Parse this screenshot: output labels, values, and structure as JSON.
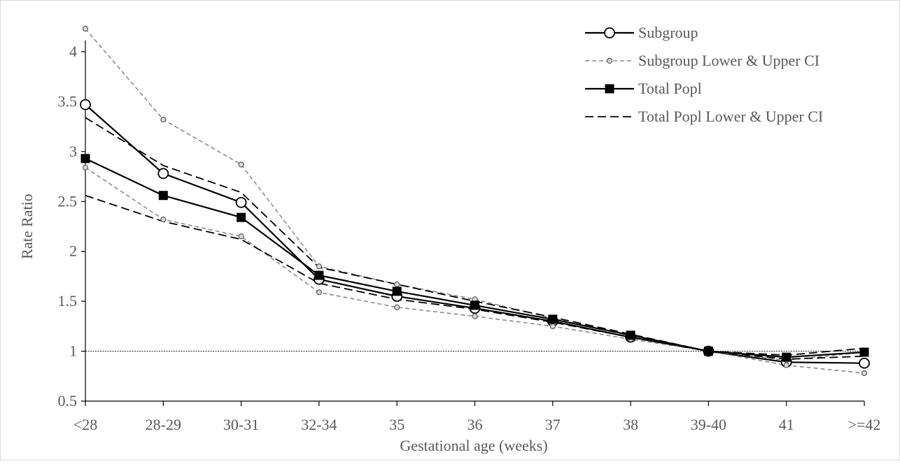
{
  "chart_data": {
    "type": "line",
    "title": "",
    "xlabel": "Gestational age (weeks)",
    "ylabel": "Rate Ratio",
    "categories": [
      "<28",
      "28-29",
      "30-31",
      "32-34",
      "35",
      "36",
      "37",
      "38",
      "39-40",
      "41",
      ">=42"
    ],
    "ylim": [
      0.5,
      4.3
    ],
    "yticks": [
      "0.5",
      "1",
      "1.5",
      "2",
      "2.5",
      "3",
      "3.5",
      "4"
    ],
    "reference_line": 1,
    "grid": false,
    "legend_position": "top-right",
    "legend": [
      "Subgroup",
      "Subgroup Lower & Upper CI",
      "Total Popl",
      "Total Popl Lower & Upper CI"
    ],
    "series": [
      {
        "name": "Subgroup",
        "values": [
          3.47,
          2.78,
          2.49,
          1.72,
          1.55,
          1.43,
          1.3,
          1.14,
          1.0,
          0.89,
          0.88
        ]
      },
      {
        "name": "Subgroup Lower & Upper CI",
        "values": [
          2.84,
          2.32,
          2.15,
          1.59,
          1.44,
          1.35,
          1.25,
          1.12,
          1.0,
          0.86,
          0.78
        ]
      },
      {
        "name": "Subgroup Lower & Upper CI",
        "values": [
          4.23,
          3.32,
          2.87,
          1.85,
          1.67,
          1.52,
          1.33,
          1.16,
          1.0,
          0.91,
          0.99
        ]
      },
      {
        "name": "Total Popl",
        "values": [
          2.93,
          2.56,
          2.34,
          1.76,
          1.6,
          1.46,
          1.32,
          1.16,
          1.0,
          0.94,
          0.99
        ]
      },
      {
        "name": "Total Popl Lower & Upper CI",
        "values": [
          2.56,
          2.3,
          2.12,
          1.68,
          1.52,
          1.42,
          1.29,
          1.14,
          1.0,
          0.92,
          0.95
        ]
      },
      {
        "name": "Total Popl Lower & Upper CI",
        "values": [
          3.34,
          2.86,
          2.59,
          1.84,
          1.67,
          1.5,
          1.34,
          1.17,
          1.0,
          0.96,
          1.03
        ]
      }
    ],
    "colors": {
      "subgroup": "#000000",
      "subgroup_ci": "#8c8c8c",
      "total": "#000000",
      "total_ci": "#000000",
      "reference": "#000000",
      "axis": "#000000",
      "text": "#595959",
      "frame": "#d9d9d9"
    }
  }
}
